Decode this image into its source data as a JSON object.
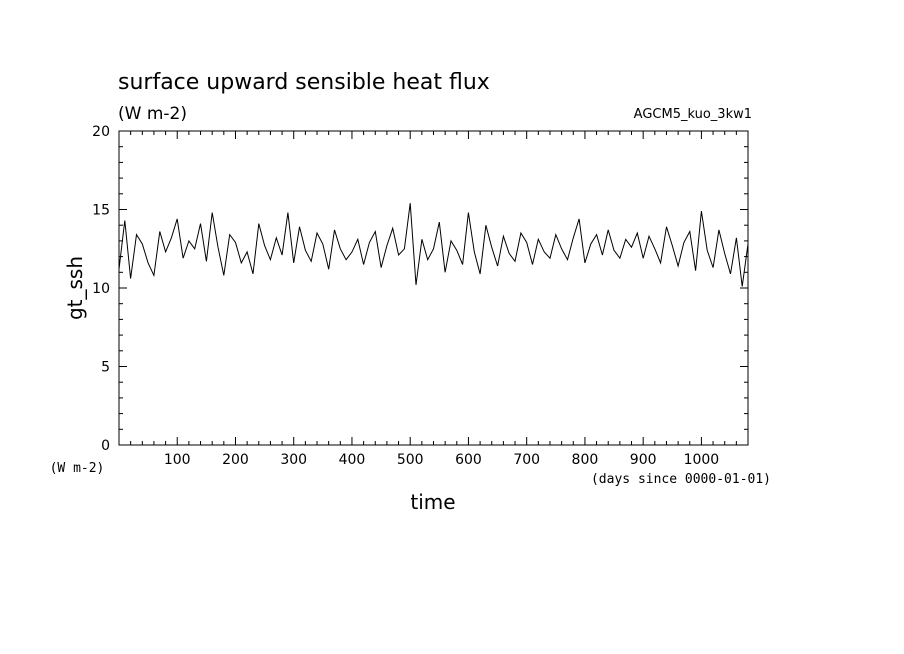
{
  "chart_data": {
    "type": "line",
    "title": "surface upward sensible heat flux",
    "units": "(W m-2)",
    "run_label": "AGCM5_kuo_3kw1",
    "xlabel": "time",
    "x_units": "(days since 0000-01-01)",
    "ylabel": "gt_ssh",
    "y_units": "(W m-2)",
    "xlim": [
      0,
      1080
    ],
    "ylim": [
      0,
      20
    ],
    "x_tick_labels": [
      "100",
      "200",
      "300",
      "400",
      "500",
      "600",
      "700",
      "800",
      "900",
      "1000"
    ],
    "y_tick_labels": [
      "0",
      "5",
      "10",
      "15",
      "20"
    ],
    "grid": false,
    "line_color": "#000000",
    "series": [
      {
        "x": [
          0,
          10,
          20,
          30,
          40,
          50,
          60,
          70,
          80,
          90,
          100,
          110,
          120,
          130,
          140,
          150,
          160,
          170,
          180,
          190,
          200,
          210,
          220,
          230,
          240,
          250,
          260,
          270,
          280,
          290,
          300,
          310,
          320,
          330,
          340,
          350,
          360,
          370,
          380,
          390,
          400,
          410,
          420,
          430,
          440,
          450,
          460,
          470,
          480,
          490,
          500,
          510,
          520,
          530,
          540,
          550,
          560,
          570,
          580,
          590,
          600,
          610,
          620,
          630,
          640,
          650,
          660,
          670,
          680,
          690,
          700,
          710,
          720,
          730,
          740,
          750,
          760,
          770,
          780,
          790,
          800,
          810,
          820,
          830,
          840,
          850,
          860,
          870,
          880,
          890,
          900,
          910,
          920,
          930,
          940,
          950,
          960,
          970,
          980,
          990,
          1000,
          1010,
          1020,
          1030,
          1040,
          1050,
          1060,
          1070,
          1080
        ],
        "values": [
          11.2,
          14.3,
          10.6,
          13.4,
          12.8,
          11.6,
          10.8,
          13.6,
          12.3,
          13.2,
          14.4,
          11.9,
          13.0,
          12.5,
          14.1,
          11.7,
          14.8,
          12.6,
          10.8,
          13.4,
          12.9,
          11.6,
          12.3,
          10.9,
          14.1,
          12.7,
          11.8,
          13.2,
          12.1,
          14.8,
          11.6,
          13.9,
          12.4,
          11.7,
          13.5,
          12.8,
          11.2,
          13.7,
          12.5,
          11.8,
          12.3,
          13.1,
          11.5,
          12.9,
          13.6,
          11.3,
          12.7,
          13.8,
          12.1,
          12.5,
          15.4,
          10.2,
          13.1,
          11.8,
          12.5,
          14.2,
          11.0,
          13.0,
          12.4,
          11.5,
          14.8,
          12.3,
          10.9,
          14.0,
          12.6,
          11.4,
          13.3,
          12.2,
          11.7,
          13.5,
          12.9,
          11.5,
          13.1,
          12.3,
          11.9,
          13.4,
          12.5,
          11.8,
          13.2,
          14.4,
          11.6,
          12.8,
          13.4,
          12.1,
          13.7,
          12.4,
          11.9,
          13.1,
          12.6,
          13.5,
          11.9,
          13.3,
          12.5,
          11.6,
          13.9,
          12.7,
          11.4,
          12.9,
          13.6,
          11.1,
          14.9,
          12.4,
          11.3,
          13.7,
          12.2,
          10.9,
          13.2,
          10.1,
          12.8
        ]
      }
    ]
  }
}
